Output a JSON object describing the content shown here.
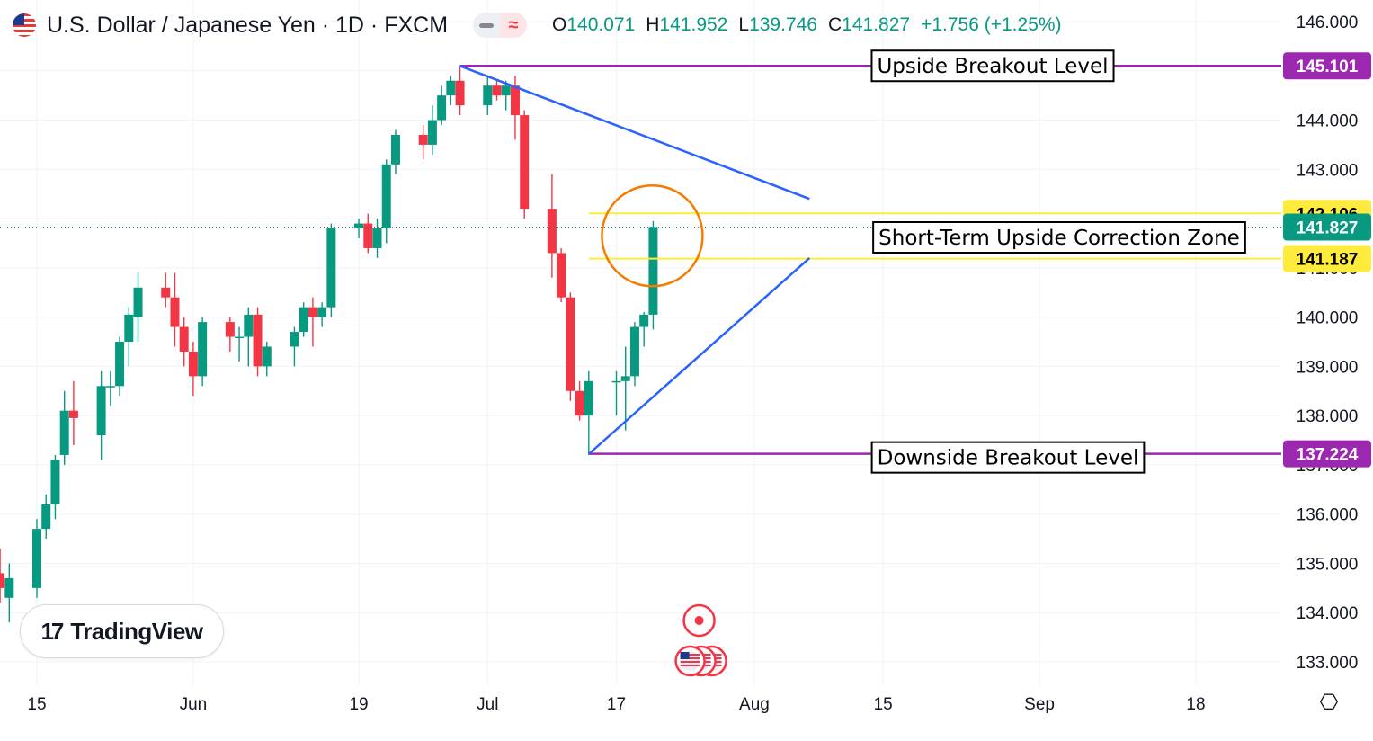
{
  "header": {
    "title": "U.S. Dollar / Japanese Yen · 1D · FXCM",
    "ohlc": [
      {
        "key": "O",
        "value": "140.071"
      },
      {
        "key": "H",
        "value": "141.952"
      },
      {
        "key": "L",
        "value": "139.746"
      },
      {
        "key": "C",
        "value": "141.827"
      },
      {
        "key": "",
        "value": "+1.756 (+1.25%)"
      }
    ],
    "indicator_glyph": "≈"
  },
  "branding": {
    "logo_mark": "17",
    "logo_text": "TradingView"
  },
  "settings_glyph": "⎔",
  "chart_data": {
    "type": "candlestick",
    "colors": {
      "up": "#089981",
      "down": "#f23645",
      "grid": "#f0f3fa",
      "axis_text": "#131722",
      "trend": "#2962ff",
      "breakout": "#9c27b0",
      "zone": "#ffeb3b",
      "circle": "#f57c00"
    },
    "y_axis": {
      "ticks": [
        "133.000",
        "134.000",
        "135.000",
        "136.000",
        "137.000",
        "138.000",
        "139.000",
        "140.000",
        "141.000",
        "142.000",
        "143.000",
        "144.000",
        "145.000",
        "146.000"
      ],
      "range": [
        132.7,
        146.2
      ]
    },
    "x_axis": {
      "ticks": [
        {
          "label": "15",
          "date": "2023-05-15"
        },
        {
          "label": "Jun",
          "date": "2023-06-01"
        },
        {
          "label": "19",
          "date": "2023-06-19"
        },
        {
          "label": "Jul",
          "date": "2023-07-03"
        },
        {
          "label": "17",
          "date": "2023-07-17"
        },
        {
          "label": "Aug",
          "date": "2023-08-01"
        },
        {
          "label": "15",
          "date": "2023-08-15"
        },
        {
          "label": "Sep",
          "date": "2023-09-01"
        },
        {
          "label": "18",
          "date": "2023-09-18"
        }
      ]
    },
    "candles": [
      {
        "date": "2023-05-11",
        "o": 134.8,
        "h": 135.3,
        "l": 134.2,
        "c": 134.5
      },
      {
        "date": "2023-05-12",
        "o": 134.3,
        "h": 135.0,
        "l": 133.8,
        "c": 134.7
      },
      {
        "date": "2023-05-15",
        "o": 134.5,
        "h": 135.9,
        "l": 134.3,
        "c": 135.7
      },
      {
        "date": "2023-05-16",
        "o": 135.7,
        "h": 136.4,
        "l": 135.5,
        "c": 136.2
      },
      {
        "date": "2023-05-17",
        "o": 136.2,
        "h": 137.2,
        "l": 135.9,
        "c": 137.1
      },
      {
        "date": "2023-05-18",
        "o": 137.2,
        "h": 138.5,
        "l": 137.0,
        "c": 138.1
      },
      {
        "date": "2023-05-19",
        "o": 138.1,
        "h": 138.7,
        "l": 137.4,
        "c": 137.95
      },
      {
        "date": "2023-05-22",
        "o": 137.6,
        "h": 138.9,
        "l": 137.1,
        "c": 138.6
      },
      {
        "date": "2023-05-23",
        "o": 138.6,
        "h": 138.9,
        "l": 138.2,
        "c": 138.6
      },
      {
        "date": "2023-05-24",
        "o": 138.6,
        "h": 139.6,
        "l": 138.4,
        "c": 139.5
      },
      {
        "date": "2023-05-25",
        "o": 139.5,
        "h": 140.2,
        "l": 139.0,
        "c": 140.05
      },
      {
        "date": "2023-05-26",
        "o": 140.0,
        "h": 140.9,
        "l": 139.5,
        "c": 140.6
      },
      {
        "date": "2023-05-29",
        "o": 140.6,
        "h": 140.9,
        "l": 140.2,
        "c": 140.4
      },
      {
        "date": "2023-05-30",
        "o": 140.4,
        "h": 140.9,
        "l": 139.4,
        "c": 139.8
      },
      {
        "date": "2023-05-31",
        "o": 139.8,
        "h": 140.0,
        "l": 139.0,
        "c": 139.3
      },
      {
        "date": "2023-06-01",
        "o": 139.3,
        "h": 139.5,
        "l": 138.4,
        "c": 138.8
      },
      {
        "date": "2023-06-02",
        "o": 138.8,
        "h": 140.0,
        "l": 138.6,
        "c": 139.9
      },
      {
        "date": "2023-06-05",
        "o": 139.9,
        "h": 140.0,
        "l": 139.3,
        "c": 139.6
      },
      {
        "date": "2023-06-06",
        "o": 139.6,
        "h": 139.8,
        "l": 139.1,
        "c": 139.6
      },
      {
        "date": "2023-06-07",
        "o": 139.6,
        "h": 140.2,
        "l": 139.0,
        "c": 140.05
      },
      {
        "date": "2023-06-08",
        "o": 140.05,
        "h": 140.2,
        "l": 138.8,
        "c": 139.0
      },
      {
        "date": "2023-06-09",
        "o": 139.0,
        "h": 139.5,
        "l": 138.8,
        "c": 139.4
      },
      {
        "date": "2023-06-12",
        "o": 139.4,
        "h": 139.8,
        "l": 139.0,
        "c": 139.7
      },
      {
        "date": "2023-06-13",
        "o": 139.7,
        "h": 140.3,
        "l": 139.6,
        "c": 140.2
      },
      {
        "date": "2023-06-14",
        "o": 140.2,
        "h": 140.4,
        "l": 139.4,
        "c": 140.0
      },
      {
        "date": "2023-06-15",
        "o": 140.0,
        "h": 140.3,
        "l": 139.8,
        "c": 140.2
      },
      {
        "date": "2023-06-16",
        "o": 140.2,
        "h": 141.9,
        "l": 140.0,
        "c": 141.8
      },
      {
        "date": "2023-06-19",
        "o": 141.8,
        "h": 142.0,
        "l": 141.6,
        "c": 141.9
      },
      {
        "date": "2023-06-20",
        "o": 141.9,
        "h": 142.1,
        "l": 141.3,
        "c": 141.4
      },
      {
        "date": "2023-06-21",
        "o": 141.4,
        "h": 142.0,
        "l": 141.2,
        "c": 141.8
      },
      {
        "date": "2023-06-22",
        "o": 141.8,
        "h": 143.2,
        "l": 141.5,
        "c": 143.1
      },
      {
        "date": "2023-06-23",
        "o": 143.1,
        "h": 143.8,
        "l": 142.9,
        "c": 143.7
      },
      {
        "date": "2023-06-26",
        "o": 143.7,
        "h": 143.9,
        "l": 143.2,
        "c": 143.5
      },
      {
        "date": "2023-06-27",
        "o": 143.5,
        "h": 144.3,
        "l": 143.3,
        "c": 144.0
      },
      {
        "date": "2023-06-28",
        "o": 144.0,
        "h": 144.7,
        "l": 143.9,
        "c": 144.5
      },
      {
        "date": "2023-06-29",
        "o": 144.5,
        "h": 144.9,
        "l": 144.3,
        "c": 144.8
      },
      {
        "date": "2023-06-30",
        "o": 144.8,
        "h": 145.1,
        "l": 144.1,
        "c": 144.3
      },
      {
        "date": "2023-07-03",
        "o": 144.3,
        "h": 144.9,
        "l": 144.1,
        "c": 144.7
      },
      {
        "date": "2023-07-04",
        "o": 144.7,
        "h": 144.8,
        "l": 144.4,
        "c": 144.5
      },
      {
        "date": "2023-07-05",
        "o": 144.5,
        "h": 144.8,
        "l": 144.2,
        "c": 144.7
      },
      {
        "date": "2023-07-06",
        "o": 144.7,
        "h": 144.9,
        "l": 143.6,
        "c": 144.1
      },
      {
        "date": "2023-07-07",
        "o": 144.1,
        "h": 144.2,
        "l": 142.0,
        "c": 142.2
      },
      {
        "date": "2023-07-10",
        "o": 142.2,
        "h": 142.9,
        "l": 140.8,
        "c": 141.3
      },
      {
        "date": "2023-07-11",
        "o": 141.3,
        "h": 141.4,
        "l": 140.3,
        "c": 140.4
      },
      {
        "date": "2023-07-12",
        "o": 140.4,
        "h": 140.5,
        "l": 138.3,
        "c": 138.5
      },
      {
        "date": "2023-07-13",
        "o": 138.5,
        "h": 138.7,
        "l": 137.9,
        "c": 138.0
      },
      {
        "date": "2023-07-14",
        "o": 138.0,
        "h": 138.9,
        "l": 137.2,
        "c": 138.7
      },
      {
        "date": "2023-07-17",
        "o": 138.7,
        "h": 138.9,
        "l": 138.0,
        "c": 138.7
      },
      {
        "date": "2023-07-18",
        "o": 138.7,
        "h": 139.4,
        "l": 137.7,
        "c": 138.8
      },
      {
        "date": "2023-07-19",
        "o": 138.8,
        "h": 139.9,
        "l": 138.6,
        "c": 139.8
      },
      {
        "date": "2023-07-20",
        "o": 139.8,
        "h": 140.1,
        "l": 139.4,
        "c": 140.05
      },
      {
        "date": "2023-07-21",
        "o": 140.05,
        "h": 141.95,
        "l": 139.75,
        "c": 141.83
      }
    ],
    "lines": [
      {
        "name": "Upside Breakout Level",
        "type": "hline",
        "price": 145.101,
        "from": "2023-06-30",
        "label": "Upside Breakout Level",
        "axis_label": "145.101",
        "color": "breakout"
      },
      {
        "name": "Downside Breakout Level",
        "type": "hline",
        "price": 137.224,
        "from": "2023-07-14",
        "label": "Downside Breakout Level",
        "axis_label": "137.224",
        "color": "breakout"
      },
      {
        "name": "zone-top",
        "type": "hline",
        "price": 142.106,
        "from": "2023-07-14",
        "axis_label": "142.106",
        "color": "zone"
      },
      {
        "name": "zone-bottom",
        "type": "hline",
        "price": 141.187,
        "from": "2023-07-14",
        "axis_label": "141.187",
        "color": "zone"
      },
      {
        "name": "descending-trendline",
        "type": "segment",
        "from": {
          "date": "2023-06-30",
          "price": 145.1
        },
        "to": {
          "date": "2023-08-07",
          "price": 142.4
        },
        "color": "trend"
      },
      {
        "name": "ascending-trendline",
        "type": "segment",
        "from": {
          "date": "2023-07-14",
          "price": 137.22
        },
        "to": {
          "date": "2023-08-07",
          "price": 141.2
        },
        "color": "trend"
      }
    ],
    "zone_label": "Short-Term Upside Correction Zone",
    "current_price": {
      "value": 141.827,
      "label": "141.827"
    },
    "circle": {
      "date": "2023-07-21",
      "price": 141.65
    }
  }
}
